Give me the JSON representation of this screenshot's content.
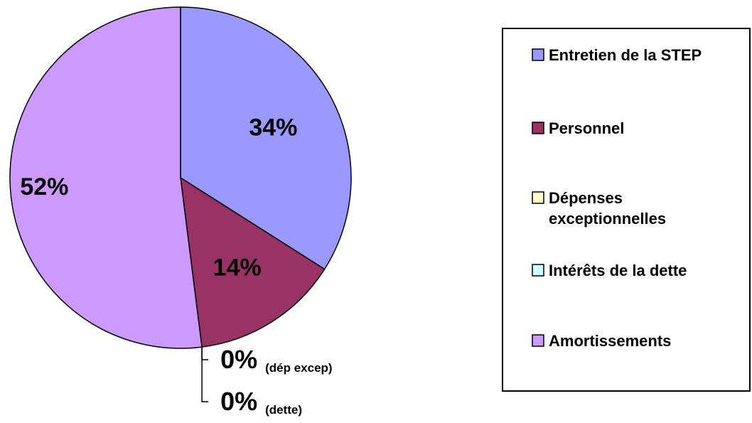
{
  "chart_data": {
    "type": "pie",
    "categories": [
      "Entretien de la STEP",
      "Personnel",
      "Dépenses exceptionnelles",
      "Intérêts de la dette",
      "Amortissements"
    ],
    "legend_lines": [
      [
        "Entretien de la STEP"
      ],
      [
        "Personnel"
      ],
      [
        "Dépenses",
        "exceptionnelles"
      ],
      [
        "Intérêts de la dette"
      ],
      [
        "Amortissements"
      ]
    ],
    "values": [
      34,
      14,
      0,
      0,
      52
    ],
    "labels": [
      "34%",
      "14%",
      "0%",
      "0%",
      "52%"
    ],
    "label_notes": [
      "",
      "",
      "(dép excep)",
      "(dette)",
      ""
    ],
    "colors": [
      "#9999ff",
      "#993366",
      "#ffffcc",
      "#ccffff",
      "#cc99ff"
    ],
    "legend_position": "right"
  }
}
